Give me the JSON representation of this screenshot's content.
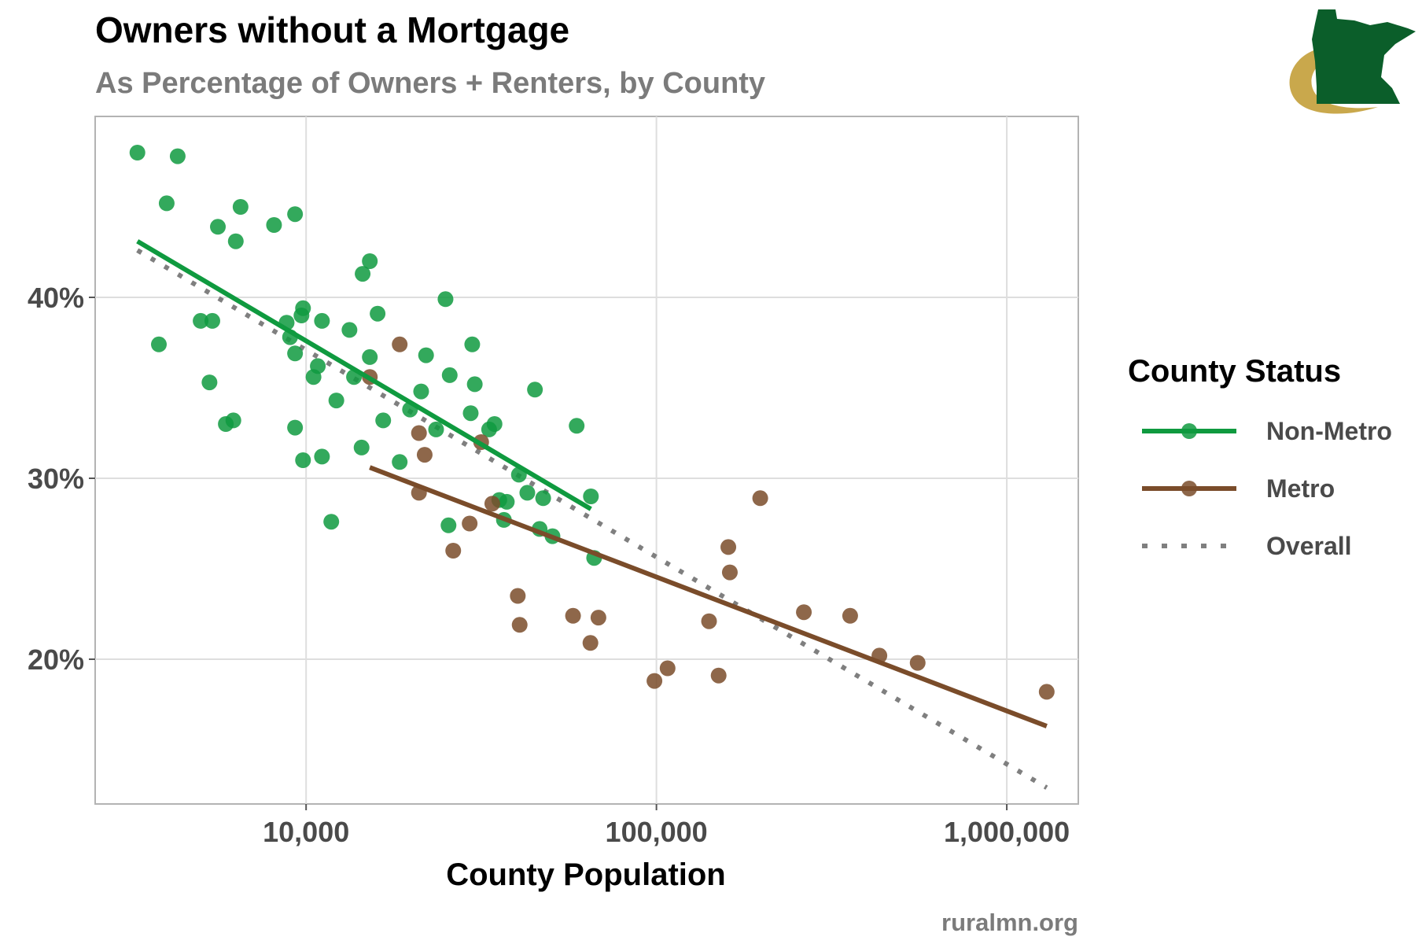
{
  "colors": {
    "non_metro": "#0f9a3f",
    "metro": "#7a4c2a",
    "overall": "#7f7f7f",
    "grid": "#dedede",
    "panel_border": "#b3b3b3",
    "logo_green": "#0b5e2a",
    "logo_gold": "#c9a84c"
  },
  "logo": {
    "icon": "minnesota-state-logo-icon"
  },
  "caption": "ruralmn.org",
  "chart_data": {
    "type": "scatter",
    "title": "Owners without a Mortgage",
    "subtitle": "As Percentage of Owners + Renters, by County",
    "xlabel": "County Population",
    "ylabel": "",
    "x_scale": "log10",
    "xlim": [
      2500,
      1600000
    ],
    "ylim": [
      12.0,
      50.0
    ],
    "x_ticks": [
      10000,
      100000,
      1000000
    ],
    "x_tick_labels": [
      "10,000",
      "100,000",
      "1,000,000"
    ],
    "y_ticks": [
      20,
      30,
      40
    ],
    "y_tick_labels": [
      "20%",
      "30%",
      "40%"
    ],
    "grid": true,
    "legend": {
      "title": "County Status",
      "position": "right",
      "entries": [
        {
          "label": "Non-Metro",
          "style": "line-point",
          "color_key": "non_metro"
        },
        {
          "label": "Metro",
          "style": "line-point",
          "color_key": "metro"
        },
        {
          "label": "Overall",
          "style": "dotted-line",
          "color_key": "overall"
        }
      ]
    },
    "series": [
      {
        "name": "Non-Metro",
        "color_key": "non_metro",
        "points": [
          [
            3300,
            48.0
          ],
          [
            4300,
            47.8
          ],
          [
            4000,
            45.2
          ],
          [
            6500,
            45.0
          ],
          [
            9300,
            44.6
          ],
          [
            8100,
            44.0
          ],
          [
            5600,
            43.9
          ],
          [
            6300,
            43.1
          ],
          [
            3800,
            37.4
          ],
          [
            5000,
            38.7
          ],
          [
            5400,
            38.7
          ],
          [
            5300,
            35.3
          ],
          [
            5900,
            33.0
          ],
          [
            6200,
            33.2
          ],
          [
            9300,
            32.8
          ],
          [
            9800,
            31.0
          ],
          [
            9800,
            39.4
          ],
          [
            9700,
            39.0
          ],
          [
            8800,
            38.6
          ],
          [
            9000,
            37.8
          ],
          [
            9300,
            36.9
          ],
          [
            11100,
            38.7
          ],
          [
            10800,
            36.2
          ],
          [
            10500,
            35.6
          ],
          [
            12200,
            34.3
          ],
          [
            11100,
            31.2
          ],
          [
            11800,
            27.6
          ],
          [
            13300,
            38.2
          ],
          [
            13700,
            35.6
          ],
          [
            14500,
            41.3
          ],
          [
            15200,
            42.0
          ],
          [
            15200,
            36.7
          ],
          [
            16000,
            39.1
          ],
          [
            16600,
            33.2
          ],
          [
            14400,
            31.7
          ],
          [
            18500,
            30.9
          ],
          [
            19800,
            33.8
          ],
          [
            21300,
            34.8
          ],
          [
            22000,
            36.8
          ],
          [
            23500,
            32.7
          ],
          [
            25000,
            39.9
          ],
          [
            25700,
            35.7
          ],
          [
            25500,
            27.4
          ],
          [
            29800,
            37.4
          ],
          [
            30300,
            35.2
          ],
          [
            29500,
            33.6
          ],
          [
            33300,
            32.7
          ],
          [
            34500,
            33.0
          ],
          [
            35600,
            28.8
          ],
          [
            37400,
            28.7
          ],
          [
            36700,
            27.7
          ],
          [
            40500,
            30.2
          ],
          [
            42800,
            29.2
          ],
          [
            45000,
            34.9
          ],
          [
            46400,
            27.2
          ],
          [
            47500,
            28.9
          ],
          [
            50500,
            26.8
          ],
          [
            59200,
            32.9
          ],
          [
            65000,
            29.0
          ],
          [
            66400,
            25.6
          ]
        ],
        "trend": {
          "x": [
            3300,
            65000
          ],
          "y": [
            43.1,
            28.3
          ]
        }
      },
      {
        "name": "Metro",
        "color_key": "metro",
        "points": [
          [
            15200,
            35.6
          ],
          [
            18500,
            37.4
          ],
          [
            21000,
            32.5
          ],
          [
            21800,
            31.3
          ],
          [
            21000,
            29.2
          ],
          [
            26300,
            26.0
          ],
          [
            29300,
            27.5
          ],
          [
            31600,
            32.0
          ],
          [
            34000,
            28.6
          ],
          [
            40200,
            23.5
          ],
          [
            40700,
            21.9
          ],
          [
            57800,
            22.4
          ],
          [
            64800,
            20.9
          ],
          [
            68300,
            22.3
          ],
          [
            98700,
            18.8
          ],
          [
            107600,
            19.5
          ],
          [
            141300,
            22.1
          ],
          [
            150500,
            19.1
          ],
          [
            160400,
            26.2
          ],
          [
            162000,
            24.8
          ],
          [
            197800,
            28.9
          ],
          [
            263500,
            22.6
          ],
          [
            357200,
            22.4
          ],
          [
            432900,
            20.2
          ],
          [
            556700,
            19.8
          ],
          [
            1300000,
            18.2
          ]
        ],
        "trend": {
          "x": [
            15200,
            1300000
          ],
          "y": [
            30.6,
            16.3
          ]
        }
      }
    ],
    "overall_trend": {
      "name": "Overall",
      "x": [
        3300,
        1300000
      ],
      "y": [
        42.6,
        12.9
      ]
    }
  }
}
